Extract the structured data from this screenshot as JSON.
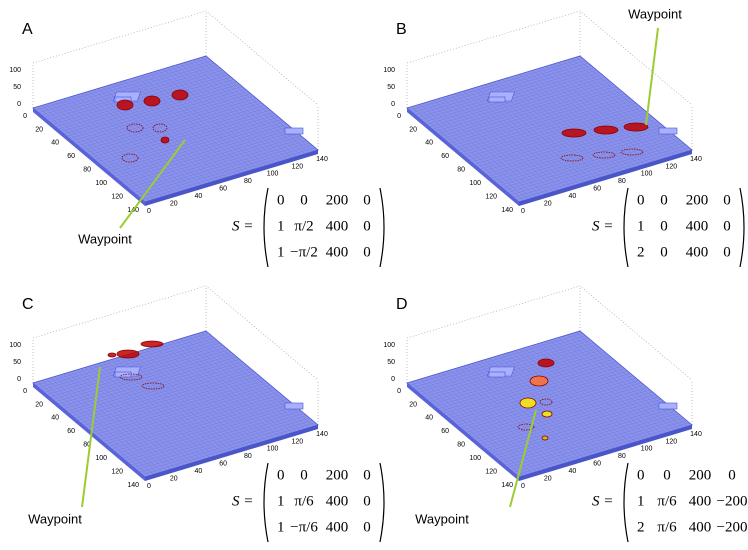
{
  "panels": [
    {
      "label": "A",
      "waypoint": "Waypoint",
      "matrix_label": "S =",
      "matrix": [
        [
          "0",
          "0",
          "200",
          "0"
        ],
        [
          "1",
          "π/2",
          "400",
          "0"
        ],
        [
          "1",
          "−π/2",
          "400",
          "0"
        ]
      ]
    },
    {
      "label": "B",
      "waypoint": "Waypoint",
      "matrix_label": "S =",
      "matrix": [
        [
          "0",
          "0",
          "200",
          "0"
        ],
        [
          "1",
          "0",
          "400",
          "0"
        ],
        [
          "2",
          "0",
          "400",
          "0"
        ]
      ]
    },
    {
      "label": "C",
      "waypoint": "Waypoint",
      "matrix_label": "S =",
      "matrix": [
        [
          "0",
          "0",
          "200",
          "0"
        ],
        [
          "1",
          "π/6",
          "400",
          "0"
        ],
        [
          "1",
          "−π/6",
          "400",
          "0"
        ]
      ]
    },
    {
      "label": "D",
      "waypoint": "Waypoint",
      "matrix_label": "S =",
      "matrix": [
        [
          "0",
          "0",
          "200",
          "0"
        ],
        [
          "1",
          "π/6",
          "400",
          "−200"
        ],
        [
          "2",
          "π/6",
          "400",
          "−200"
        ]
      ]
    }
  ],
  "axes": {
    "x_ticks": [
      "0",
      "20",
      "40",
      "60",
      "80",
      "100",
      "120",
      "140"
    ],
    "y_ticks": [
      "0",
      "20",
      "40",
      "60",
      "80",
      "100",
      "120",
      "140"
    ],
    "z_ticks": [
      "0",
      "50",
      "100"
    ]
  }
}
